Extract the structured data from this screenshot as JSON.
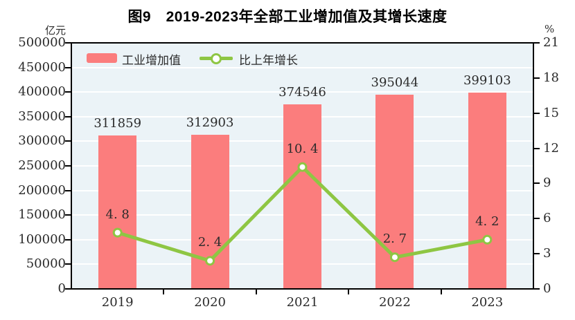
{
  "title": "图9　2019-2023年全部工业增加值及其增长速度",
  "left_axis_unit": "亿元",
  "right_axis_unit": "%",
  "legend": {
    "bar_label": "工业增加值",
    "line_label": "比上年增长"
  },
  "colors": {
    "bar": "#FB7D7D",
    "line": "#8EC643",
    "marker_fill": "#FFFFFF",
    "plot_bg": "#EBF3F7",
    "grid": "#FFFFFF",
    "axis": "#000000",
    "text": "#2B2B2B"
  },
  "chart_data": {
    "type": "bar",
    "combo_types": [
      "bar",
      "line"
    ],
    "title": "图9　2019-2023年全部工业增加值及其增长速度",
    "categories": [
      "2019",
      "2020",
      "2021",
      "2022",
      "2023"
    ],
    "series": [
      {
        "name": "工业增加值",
        "type": "bar",
        "axis": "left",
        "values": [
          311859,
          312903,
          374546,
          395044,
          399103
        ],
        "labels": [
          "311859",
          "312903",
          "374546",
          "395044",
          "399103"
        ]
      },
      {
        "name": "比上年增长",
        "type": "line",
        "axis": "right",
        "values": [
          4.8,
          2.4,
          10.4,
          2.7,
          4.2
        ],
        "labels": [
          "4. 8",
          "2. 4",
          "10. 4",
          "2. 7",
          "4. 2"
        ]
      }
    ],
    "left_axis": {
      "label": "亿元",
      "min": 0,
      "max": 500000,
      "step": 50000,
      "ticks": [
        "500000",
        "450000",
        "400000",
        "350000",
        "300000",
        "250000",
        "200000",
        "150000",
        "100000",
        "50000",
        "0"
      ]
    },
    "right_axis": {
      "label": "%",
      "min": 0,
      "max": 21,
      "step": 3,
      "ticks": [
        "21",
        "18",
        "15",
        "12",
        "9",
        "6",
        "3",
        "0"
      ]
    },
    "grid": true,
    "legend_position": "top-left-inside"
  }
}
